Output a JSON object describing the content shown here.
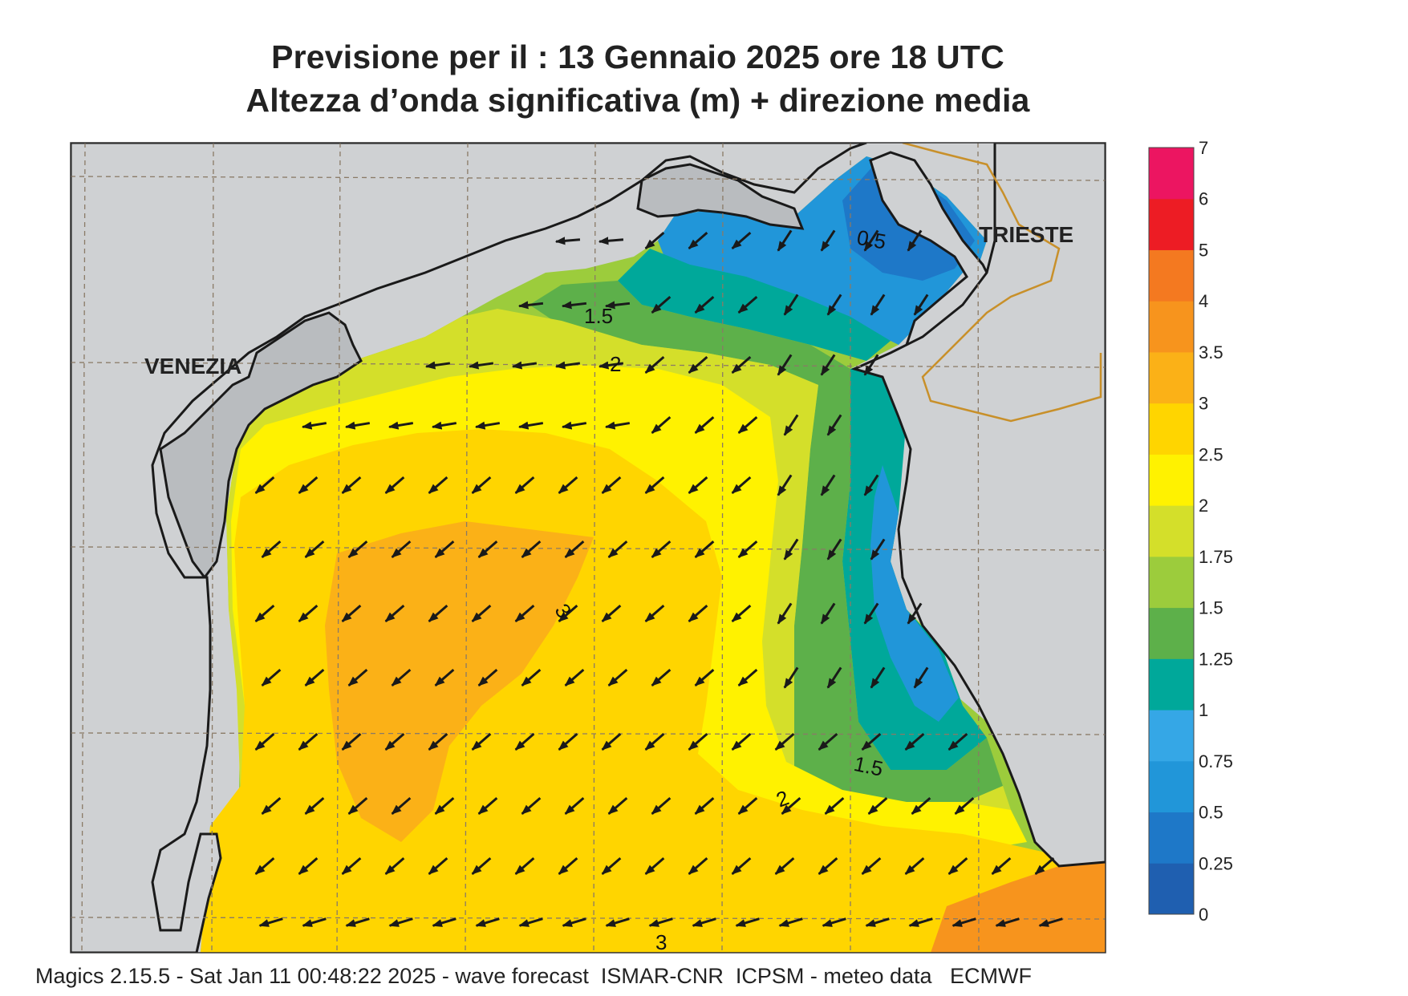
{
  "title": {
    "line1": "Previsione per il  :  13  Gennaio  2025   ore 18 UTC",
    "line2": "Altezza d’onda significativa (m) + direzione media"
  },
  "map": {
    "place_labels": [
      {
        "id": "venezia",
        "text": "VENEZIA"
      },
      {
        "id": "trieste",
        "text": "TRIESTE"
      }
    ],
    "contour_labels": [
      "0.5",
      "1.5",
      "2",
      "3",
      "1.5",
      "2",
      "3"
    ],
    "wave_direction": "south-west"
  },
  "legend": {
    "unit": "m",
    "levels": [
      "0",
      "0.25",
      "0.5",
      "0.75",
      "1",
      "1.25",
      "1.5",
      "1.75",
      "2",
      "2.5",
      "3",
      "3.5",
      "4",
      "5",
      "6",
      "7"
    ],
    "colors": [
      "#1f5fb0",
      "#1e78c8",
      "#2196d9",
      "#35a7e6",
      "#00a89a",
      "#5db04a",
      "#9ccc3c",
      "#d4df2a",
      "#fff200",
      "#ffd500",
      "#fbb117",
      "#f7941d",
      "#f47920",
      "#ed1c24",
      "#ec1561"
    ]
  },
  "colors": {
    "land": "#cfd1d3",
    "coast": "#1a1a1a",
    "border": "#c8902a",
    "grid": "#8a7a66",
    "arrow": "#1a1a1a"
  },
  "footer": "Magics 2.15.5 - Sat Jan 11 00:48:22 2025 - wave forecast  ISMAR-CNR  ICPSM - meteo data   ECMWF"
}
